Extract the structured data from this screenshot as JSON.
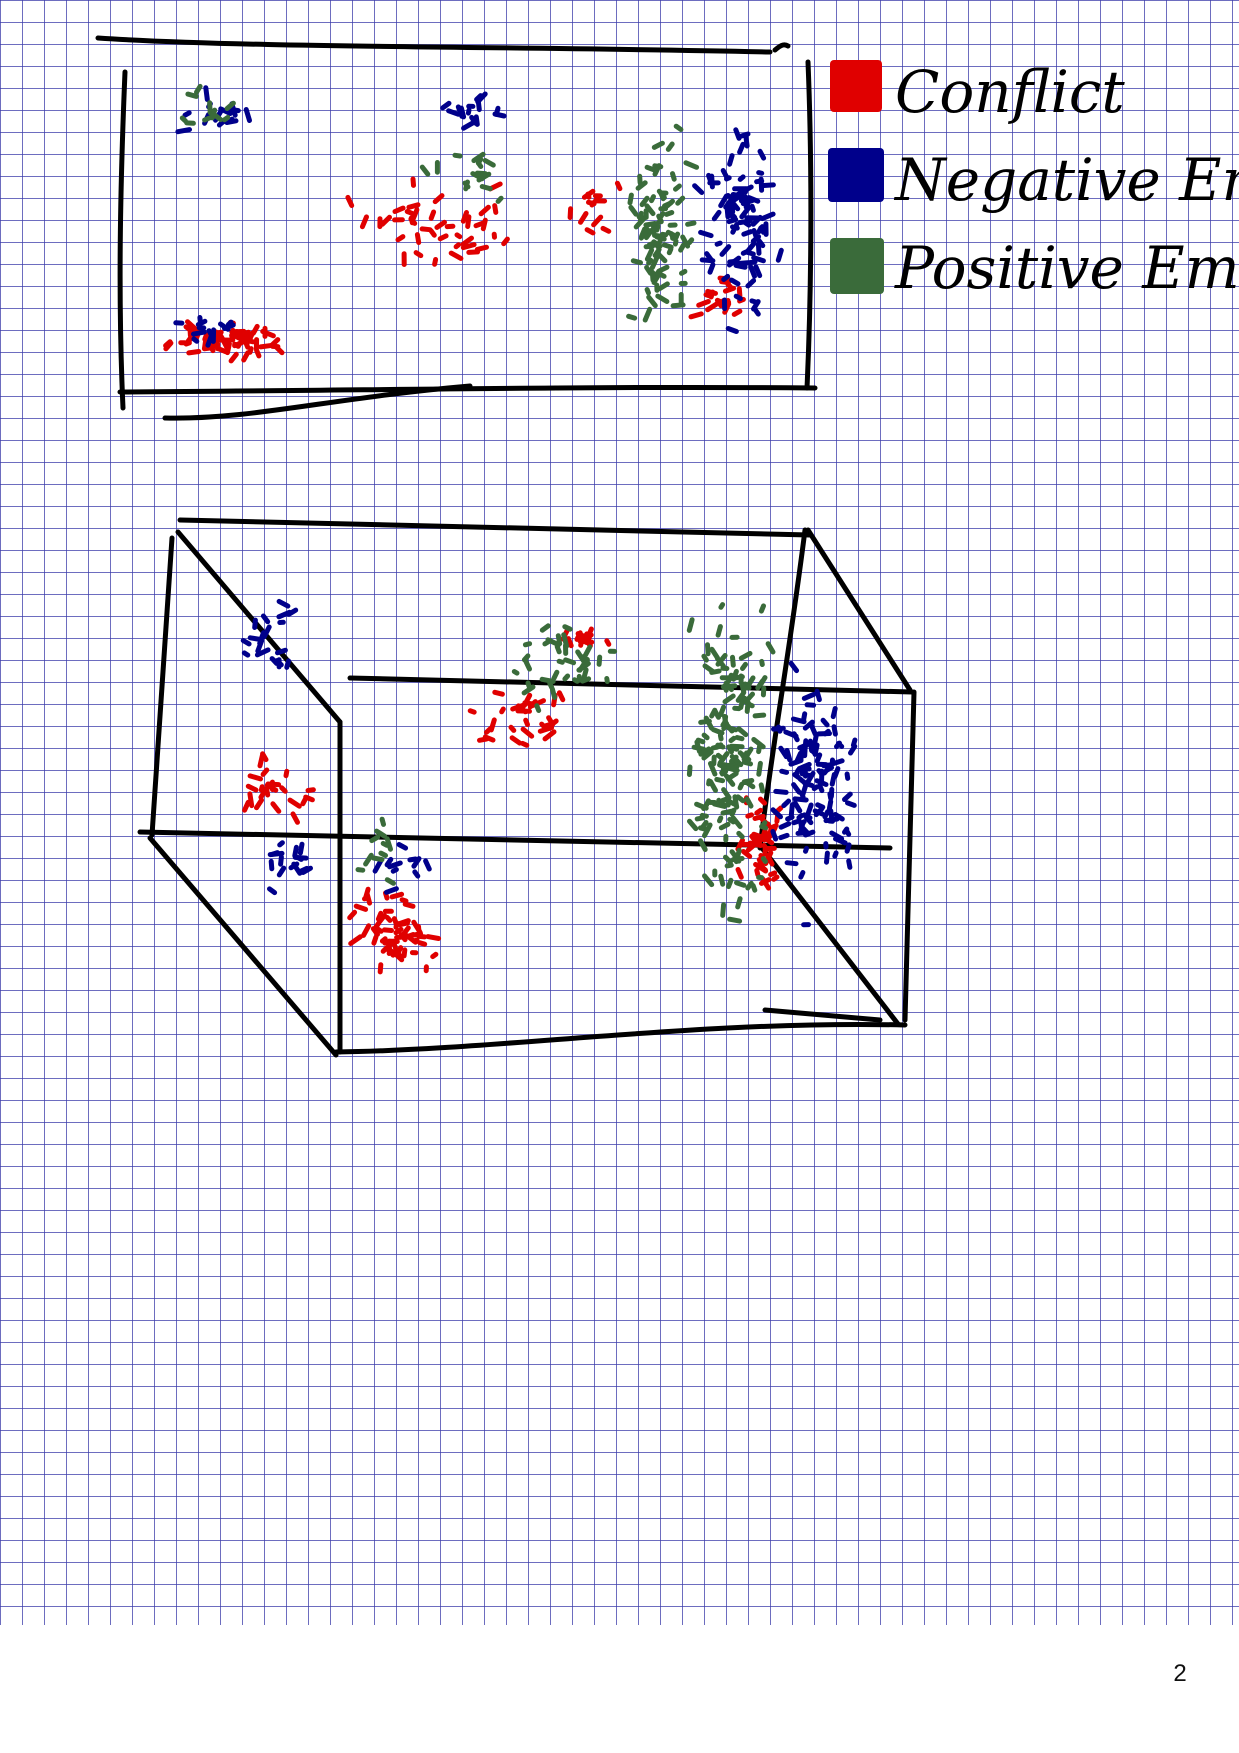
{
  "page": {
    "number": "2"
  },
  "chart_data": [
    {
      "type": "scatter",
      "xlabel": "",
      "ylabel": "",
      "series": [
        {
          "name": "Conflict",
          "clusters": [
            "lower-left",
            "upper-middle",
            "right edge"
          ]
        },
        {
          "name": "Negative Emotion",
          "clusters": [
            "upper-left",
            "upper-middle",
            "right"
          ]
        },
        {
          "name": "Positive Emotion",
          "clusters": [
            "upper-left",
            "middle",
            "right-center"
          ]
        }
      ]
    },
    {
      "type": "scatter",
      "projection": "3d",
      "xlabel": "",
      "ylabel": "",
      "zlabel": "",
      "series": [
        {
          "name": "Conflict",
          "clusters": [
            "front-left",
            "middle",
            "front-right edge"
          ]
        },
        {
          "name": "Negative Emotion",
          "clusters": [
            "back-left",
            "right"
          ]
        },
        {
          "name": "Positive Emotion",
          "clusters": [
            "middle",
            "right-center column"
          ]
        }
      ]
    }
  ],
  "legend": {
    "items": [
      {
        "label": "Conflict",
        "color": "#e00000"
      },
      {
        "label": "Negative Emotion",
        "color": "#00008b"
      },
      {
        "label": "Positive Emotion",
        "color": "#3a6b3a"
      }
    ]
  }
}
